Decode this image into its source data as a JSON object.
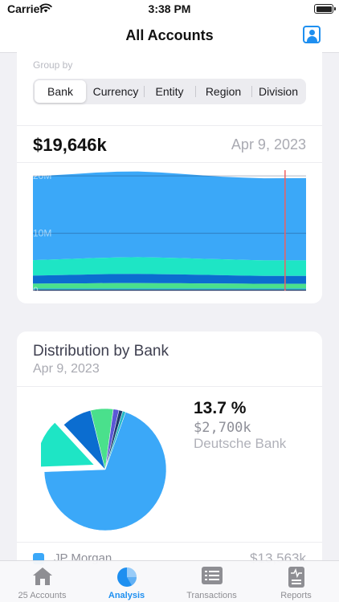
{
  "status_bar": {
    "carrier": "Carrier",
    "time": "3:38 PM"
  },
  "nav": {
    "title": "All Accounts",
    "profile_icon": "person-badge-icon"
  },
  "group_by": {
    "label": "Group by",
    "options": [
      "Bank",
      "Currency",
      "Entity",
      "Region",
      "Division"
    ],
    "selected": "Bank"
  },
  "summary": {
    "total": "$19,646k",
    "date": "Apr 9, 2023"
  },
  "chart_data": [
    {
      "type": "area",
      "stacked": true,
      "y_tick_labels": [
        "20M",
        "10M",
        "0"
      ],
      "ylim": [
        0,
        21000000
      ],
      "grid": true,
      "legend": "none",
      "x": [
        0,
        1,
        2,
        3,
        4,
        5,
        6,
        7,
        8,
        9,
        10,
        11,
        12,
        13
      ],
      "marker_index": 12,
      "colors": [
        "#1f3b6e",
        "#26b8c6",
        "#4ae08c",
        "#0b6dd0",
        "#1ee5c5",
        "#3ba8f8"
      ],
      "series": [
        {
          "values": [
            150000,
            150000,
            150000,
            150000,
            150000,
            150000,
            150000,
            150000,
            150000,
            150000,
            150000,
            150000,
            150000,
            150000
          ]
        },
        {
          "values": [
            250000,
            250000,
            250000,
            250000,
            250000,
            250000,
            250000,
            250000,
            250000,
            250000,
            250000,
            250000,
            250000,
            250000
          ]
        },
        {
          "values": [
            800000,
            820000,
            840000,
            880000,
            900000,
            900000,
            880000,
            870000,
            850000,
            830000,
            800000,
            780000,
            780000,
            780000
          ]
        },
        {
          "values": [
            1400000,
            1450000,
            1500000,
            1550000,
            1580000,
            1600000,
            1580000,
            1550000,
            1500000,
            1450000,
            1400000,
            1380000,
            1380000,
            1380000
          ]
        },
        {
          "values": [
            2700000,
            2750000,
            2800000,
            2850000,
            2900000,
            2920000,
            2900000,
            2850000,
            2800000,
            2780000,
            2750000,
            2700000,
            2700000,
            2700000
          ]
        },
        {
          "values": [
            14600000,
            14700000,
            14800000,
            14900000,
            14950000,
            14950000,
            14850000,
            14700000,
            14550000,
            14400000,
            14350000,
            14330000,
            14336000,
            14350000
          ]
        }
      ]
    },
    {
      "type": "pie",
      "title": "Distribution by Bank",
      "subtitle": "Apr 9, 2023",
      "values": [
        69.0,
        13.7,
        8.0,
        6.0,
        1.5,
        1.0,
        0.8
      ],
      "colors": [
        "#3ba8f8",
        "#1ee5c5",
        "#0b6dd0",
        "#4ae08c",
        "#5b57d6",
        "#1f3b6e",
        "#26b8c6"
      ],
      "selected_index": 1
    }
  ],
  "selection": {
    "percent": "13.7 %",
    "amount": "$2,700k",
    "name": "Deutsche Bank"
  },
  "legend_rows": [
    {
      "name": "JP Morgan",
      "value": "$13,563k",
      "color": "#3ba8f8"
    }
  ],
  "tabs": [
    {
      "label": "25 Accounts",
      "icon": "house-icon"
    },
    {
      "label": "Analysis",
      "icon": "pie-chart-icon"
    },
    {
      "label": "Transactions",
      "icon": "list-icon"
    },
    {
      "label": "Reports",
      "icon": "report-icon"
    }
  ],
  "active_tab": "Analysis"
}
